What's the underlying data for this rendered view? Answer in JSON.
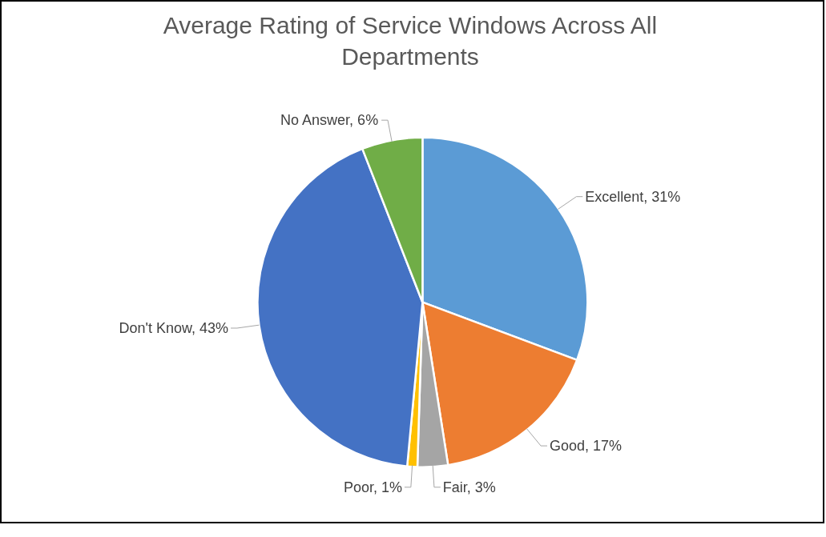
{
  "chart_data": {
    "type": "pie",
    "title": "Average Rating of Service Windows Across All Departments",
    "categories": [
      "Excellent",
      "Good",
      "Fair",
      "Poor",
      "Don't Know",
      "No Answer"
    ],
    "values": [
      31,
      17,
      3,
      1,
      43,
      6
    ],
    "colors": [
      "#5b9bd5",
      "#ed7d31",
      "#a5a5a5",
      "#ffc000",
      "#4472c4",
      "#70ad47"
    ],
    "value_labels": [
      "31%",
      "17%",
      "3%",
      "1%",
      "43%",
      "6%"
    ],
    "legend": false
  }
}
